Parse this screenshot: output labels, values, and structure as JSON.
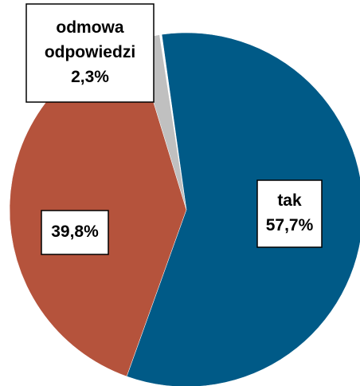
{
  "chart_data": {
    "type": "pie",
    "categories": [
      "tak",
      null,
      "odmowa odpowiedzi"
    ],
    "values": [
      57.7,
      39.8,
      2.3
    ],
    "value_labels": [
      "57,7%",
      "39,8%",
      "2,3%"
    ],
    "colors": [
      "#005a87",
      "#b5533c",
      "#c0c0c0"
    ]
  }
}
